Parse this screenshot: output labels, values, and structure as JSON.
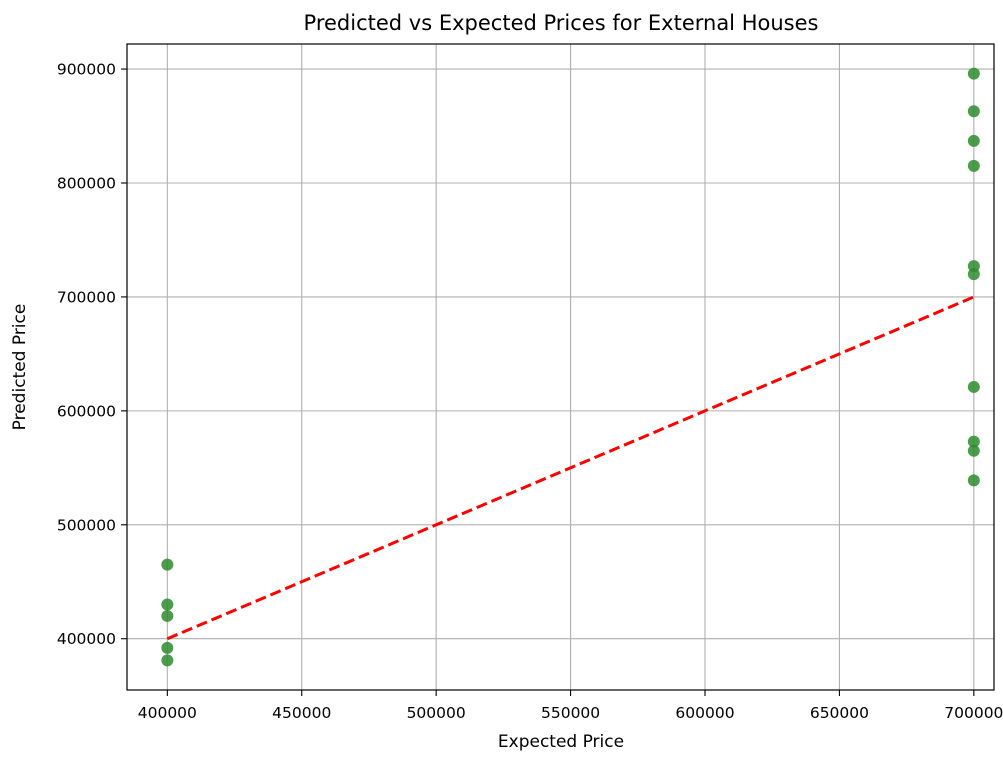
{
  "chart_data": {
    "type": "scatter",
    "title": "Predicted vs Expected Prices for External Houses",
    "xlabel": "Expected Price",
    "ylabel": "Predicted Price",
    "xlim": [
      385000,
      707500
    ],
    "ylim": [
      355000,
      922000
    ],
    "xticks": [
      400000,
      450000,
      500000,
      550000,
      600000,
      650000,
      700000
    ],
    "yticks": [
      400000,
      500000,
      600000,
      700000,
      800000,
      900000
    ],
    "grid": true,
    "series": [
      {
        "kind": "points",
        "color": "#2e8b2e",
        "x": [
          400000,
          400000,
          400000,
          400000,
          400000,
          700000,
          700000,
          700000,
          700000,
          700000,
          700000,
          700000,
          700000,
          700000,
          700000
        ],
        "y": [
          465000,
          430000,
          420000,
          392000,
          381000,
          896000,
          863000,
          837000,
          815000,
          727000,
          720000,
          621000,
          573000,
          565000,
          539000
        ]
      },
      {
        "kind": "reference-line",
        "color": "#ff0000",
        "style": "dashed",
        "x": [
          400000,
          700000
        ],
        "y": [
          400000,
          700000
        ]
      }
    ]
  }
}
